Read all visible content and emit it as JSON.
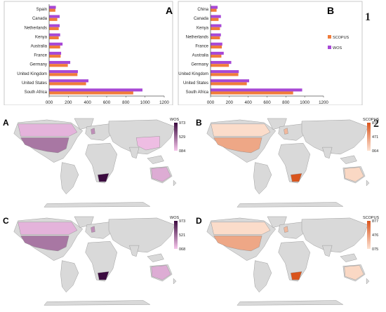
{
  "figure": {
    "number_top": "1",
    "number_bottom": "2"
  },
  "colors": {
    "scopus": "#f07c3a",
    "wos": "#a748d6",
    "land": "#d9d9d9",
    "border": "#888888",
    "wos_low": "#f7c6ec",
    "wos_high": "#3b0a3f",
    "scopus_low": "#fde3d3",
    "scopus_high": "#d9541c"
  },
  "chart_data": [
    {
      "panel": "A",
      "type": "bar",
      "orientation": "horizontal",
      "categories": [
        "South Africa",
        "United States",
        "United Kingdom",
        "Germany",
        "France",
        "Australia",
        "Kenya",
        "Netherlands",
        "Canada",
        "Spain"
      ],
      "series": [
        {
          "name": "WOS",
          "values": [
            973,
            410,
            300,
            220,
            125,
            140,
            115,
            110,
            110,
            70
          ]
        },
        {
          "name": "SCOPUS",
          "values": [
            877,
            385,
            295,
            195,
            120,
            115,
            100,
            100,
            85,
            65
          ]
        }
      ],
      "xticks": [
        "000",
        "200",
        "400",
        "600",
        "800",
        "1000",
        "1200"
      ],
      "xlim": [
        0,
        1200
      ],
      "grid": false,
      "legend": "none"
    },
    {
      "panel": "B",
      "type": "bar",
      "orientation": "horizontal",
      "categories": [
        "South Africa",
        "United States",
        "United Kingdom",
        "Germany",
        "Australia",
        "France",
        "Netherlands",
        "Kenya",
        "Canada",
        "China"
      ],
      "series": [
        {
          "name": "WOS",
          "values": [
            973,
            410,
            300,
            220,
            140,
            125,
            110,
            115,
            110,
            75
          ]
        },
        {
          "name": "SCOPUS",
          "values": [
            877,
            385,
            295,
            195,
            115,
            120,
            100,
            100,
            85,
            64
          ]
        }
      ],
      "xticks": [
        "000",
        "200",
        "400",
        "600",
        "800",
        "1000",
        "1200"
      ],
      "xlim": [
        0,
        1200
      ],
      "grid": false,
      "legend": "right",
      "legend_items": [
        "SCOPUS",
        "WOS"
      ]
    }
  ],
  "maps": [
    {
      "panel": "A",
      "legend_title": "WOS",
      "legend_ticks": [
        "973",
        "529",
        "084"
      ],
      "scheme": "wos",
      "highlight": {
        "south_africa": 1.0,
        "usa": 0.42,
        "uk": 0.3,
        "canada": 0.1,
        "australia": 0.14,
        "china": 0.05,
        "brazil": 0.0
      }
    },
    {
      "panel": "B",
      "legend_title": "SCOPUS",
      "legend_ticks": [
        "877",
        "471",
        "064"
      ],
      "scheme": "scopus",
      "highlight": {
        "south_africa": 1.0,
        "usa": 0.42,
        "uk": 0.3,
        "canada": 0.05,
        "australia": 0.08,
        "china": 0.0,
        "brazil": 0.0
      }
    },
    {
      "panel": "C",
      "legend_title": "WOS",
      "legend_ticks": [
        "973",
        "521",
        "068"
      ],
      "scheme": "wos",
      "highlight": {
        "south_africa": 1.0,
        "usa": 0.42,
        "uk": 0.3,
        "canada": 0.1,
        "australia": 0.14,
        "china": 0.0,
        "brazil": 0.0
      }
    },
    {
      "panel": "D",
      "legend_title": "SCOPUS",
      "legend_ticks": [
        "877",
        "476",
        "075"
      ],
      "scheme": "scopus",
      "highlight": {
        "south_africa": 1.0,
        "usa": 0.42,
        "uk": 0.3,
        "canada": 0.05,
        "australia": 0.08,
        "china": 0.0,
        "brazil": 0.0
      }
    }
  ]
}
